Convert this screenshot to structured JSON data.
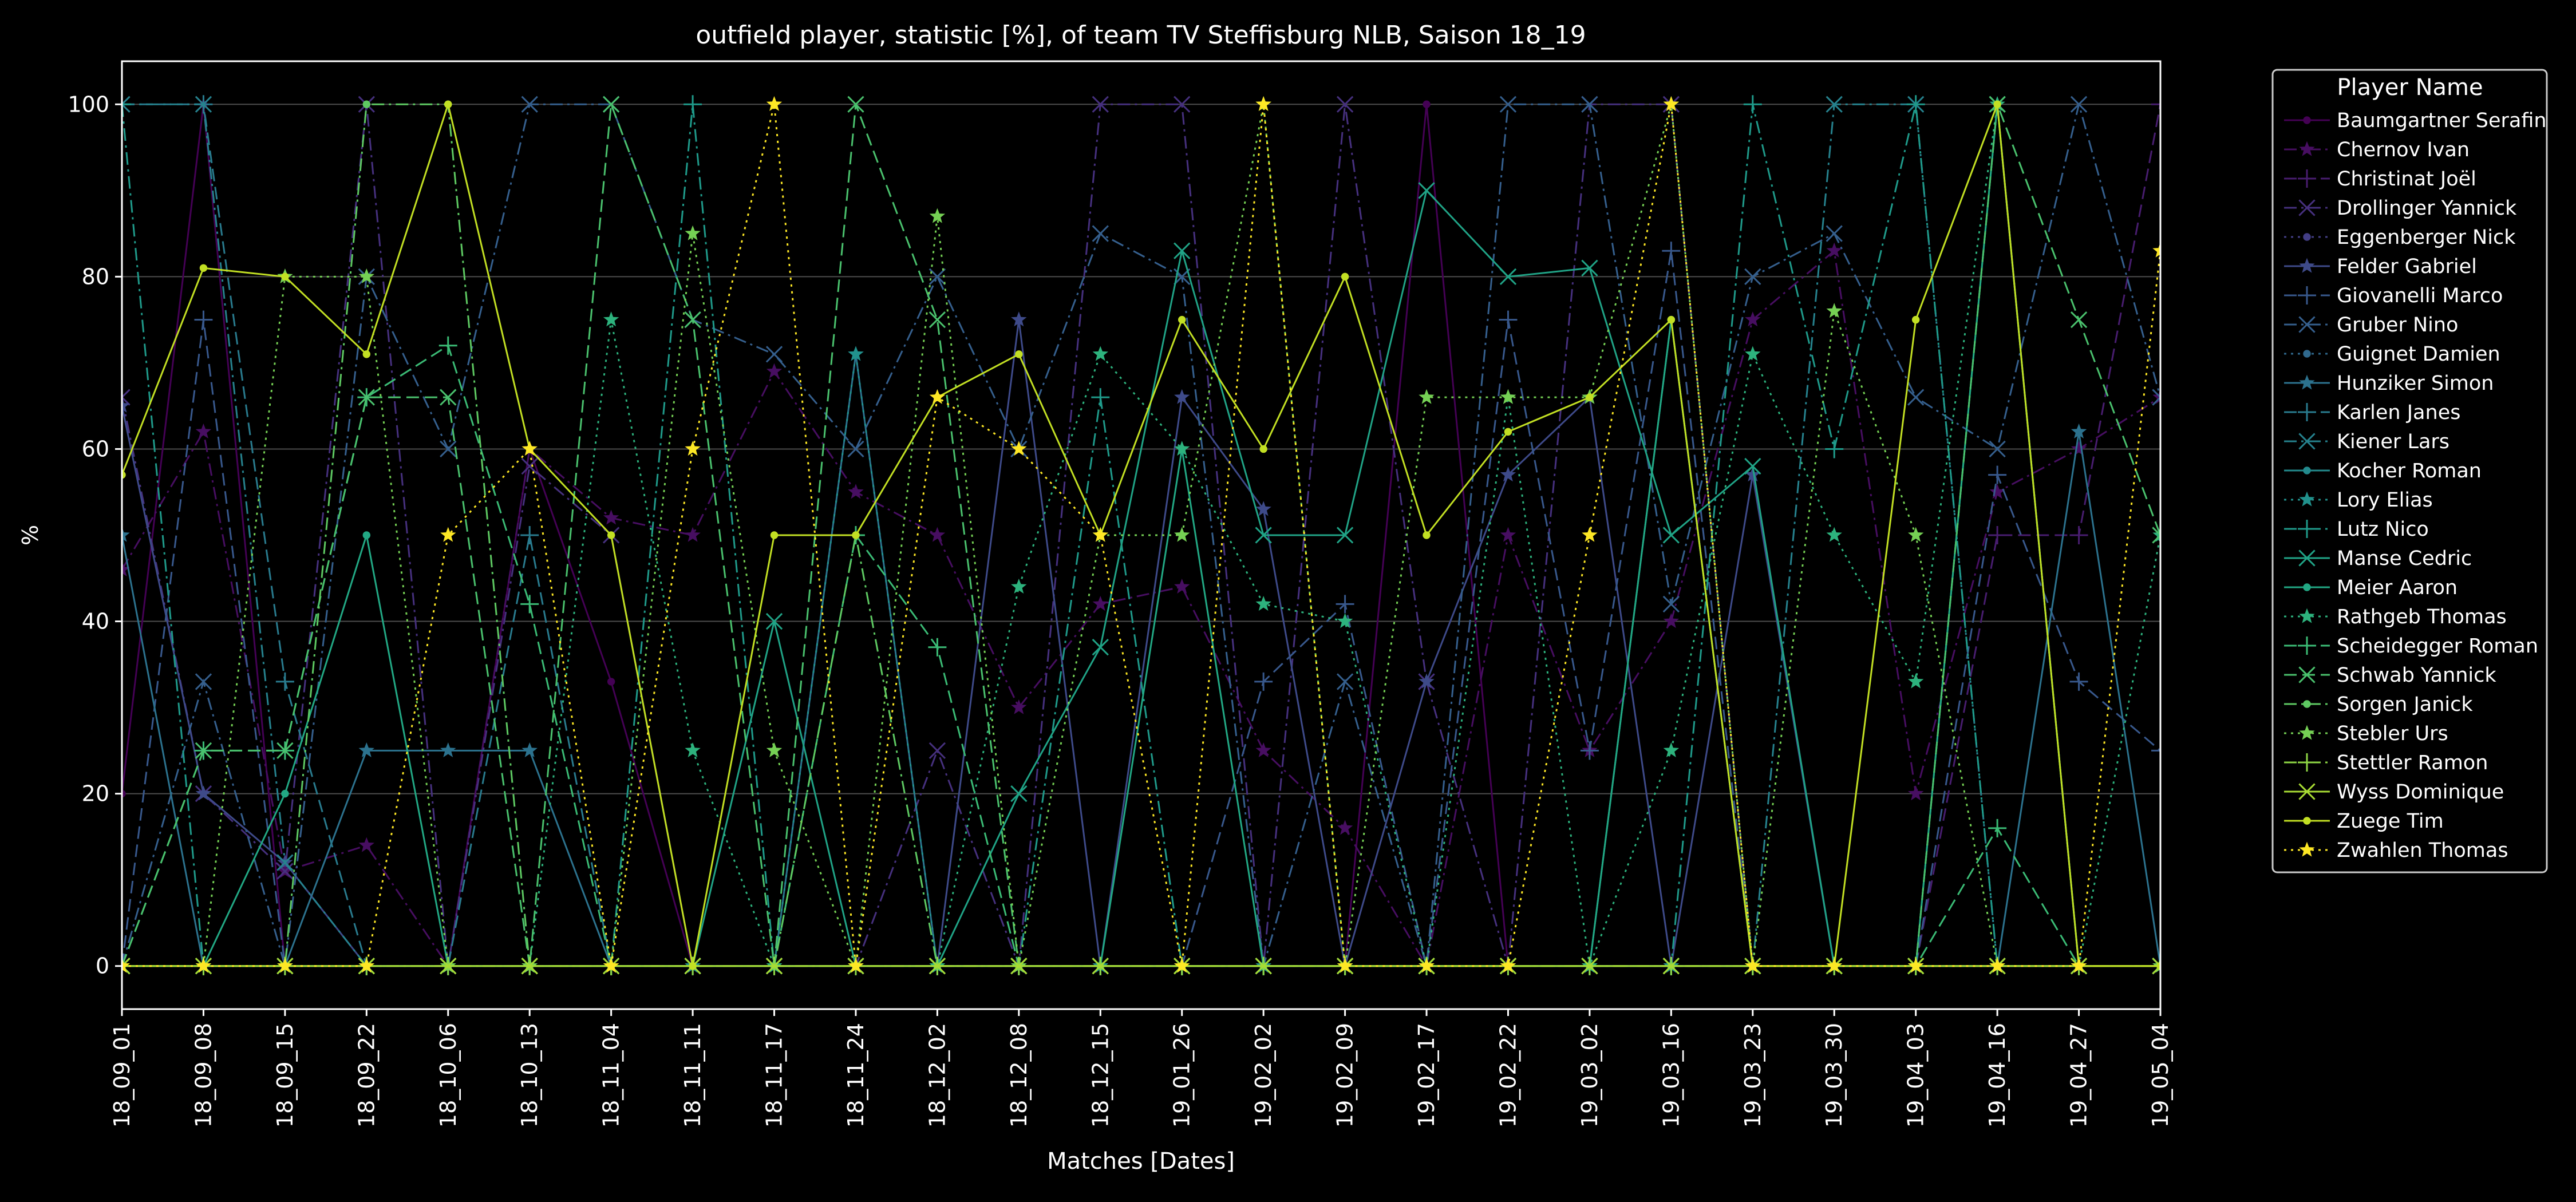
{
  "chart_data": {
    "type": "line",
    "title": "outfield player, statistic [%], of team TV Steffisburg NLB, Saison 18_19",
    "xlabel": "Matches [Dates]",
    "ylabel": "%",
    "ylim": [
      -5,
      105
    ],
    "yticks": [
      0,
      20,
      40,
      60,
      80,
      100
    ],
    "grid": "horizontal",
    "legend_title": "Player Name",
    "legend_position": "outside-right",
    "categories": [
      "18_09_01",
      "18_09_08",
      "18_09_15",
      "18_09_22",
      "18_10_06",
      "18_10_13",
      "18_11_04",
      "18_11_11",
      "18_11_17",
      "18_11_24",
      "18_12_02",
      "18_12_08",
      "18_12_15",
      "19_01_26",
      "19_02_02",
      "19_02_09",
      "19_02_17",
      "19_02_22",
      "19_03_02",
      "19_03_16",
      "19_03_23",
      "19_03_30",
      "19_04_03",
      "19_04_16",
      "19_04_27",
      "19_05_04"
    ],
    "series": [
      {
        "name": "Baumgartner Serafin",
        "color": "#440154",
        "dash": "solid",
        "marker": "circle",
        "values": [
          20,
          100,
          0,
          0,
          0,
          60,
          33,
          0,
          0,
          0,
          0,
          0,
          0,
          0,
          0,
          0,
          100,
          0,
          0,
          0,
          0,
          0,
          0,
          0,
          0,
          0
        ]
      },
      {
        "name": "Chernov Ivan",
        "color": "#470e61",
        "dash": "dashdot",
        "marker": "star",
        "values": [
          46,
          62,
          11,
          14,
          0,
          60,
          52,
          50,
          69,
          55,
          50,
          30,
          42,
          44,
          25,
          16,
          0,
          50,
          25,
          40,
          75,
          83,
          20,
          55,
          60,
          66
        ]
      },
      {
        "name": "Christinat Joël",
        "color": "#481d6f",
        "dash": "dashed",
        "marker": "plus",
        "values": [
          0,
          0,
          0,
          0,
          0,
          0,
          0,
          0,
          0,
          0,
          0,
          0,
          0,
          0,
          0,
          0,
          0,
          0,
          0,
          0,
          0,
          0,
          0,
          50,
          50,
          100
        ]
      },
      {
        "name": "Drollinger Yannick",
        "color": "#46307e",
        "dash": "dashdot",
        "marker": "x",
        "values": [
          66,
          20,
          11,
          100,
          0,
          58,
          50,
          0,
          0,
          0,
          25,
          0,
          100,
          100,
          0,
          100,
          33,
          0,
          100,
          100,
          0,
          0,
          0,
          0,
          0,
          0
        ]
      },
      {
        "name": "Eggenberger Nick",
        "color": "#433e85",
        "dash": "dotted",
        "marker": "circle",
        "values": [
          0,
          0,
          0,
          0,
          0,
          0,
          0,
          0,
          0,
          0,
          0,
          0,
          0,
          0,
          0,
          0,
          0,
          0,
          0,
          0,
          0,
          0,
          0,
          0,
          0,
          0
        ]
      },
      {
        "name": "Felder Gabriel",
        "color": "#3e4a89",
        "dash": "solid",
        "marker": "star",
        "values": [
          65,
          20,
          12,
          0,
          0,
          0,
          0,
          0,
          0,
          0,
          0,
          75,
          0,
          66,
          53,
          0,
          33,
          57,
          66,
          0,
          57,
          0,
          0,
          0,
          0,
          0
        ]
      },
      {
        "name": "Giovanelli Marco",
        "color": "#38588c",
        "dash": "dashed",
        "marker": "plus",
        "values": [
          0,
          75,
          0,
          0,
          0,
          0,
          0,
          0,
          0,
          0,
          0,
          0,
          0,
          0,
          33,
          42,
          0,
          75,
          25,
          83,
          0,
          0,
          0,
          57,
          33,
          25
        ]
      },
      {
        "name": "Gruber Nino",
        "color": "#355f8d",
        "dash": "dashdot",
        "marker": "x",
        "values": [
          0,
          33,
          0,
          80,
          60,
          100,
          100,
          75,
          71,
          60,
          80,
          60,
          85,
          80,
          0,
          33,
          0,
          100,
          100,
          42,
          80,
          85,
          66,
          60,
          100,
          66
        ]
      },
      {
        "name": "Guignet Damien",
        "color": "#30698e",
        "dash": "dotted",
        "marker": "circle",
        "values": [
          0,
          0,
          0,
          0,
          0,
          0,
          0,
          0,
          0,
          0,
          0,
          0,
          0,
          0,
          0,
          0,
          0,
          0,
          0,
          0,
          0,
          0,
          0,
          0,
          0,
          0
        ]
      },
      {
        "name": "Hunziker Simon",
        "color": "#2c728e",
        "dash": "solid",
        "marker": "star",
        "values": [
          50,
          0,
          0,
          25,
          25,
          25,
          0,
          0,
          0,
          71,
          0,
          0,
          0,
          0,
          0,
          0,
          0,
          0,
          0,
          0,
          0,
          0,
          0,
          0,
          62,
          0
        ]
      },
      {
        "name": "Karlen Janes",
        "color": "#297b8e",
        "dash": "dashed",
        "marker": "plus",
        "values": [
          100,
          100,
          33,
          0,
          0,
          50,
          0,
          0,
          0,
          0,
          0,
          0,
          0,
          0,
          0,
          0,
          0,
          0,
          0,
          0,
          0,
          0,
          0,
          0,
          0,
          0
        ]
      },
      {
        "name": "Kiener Lars",
        "color": "#26828e",
        "dash": "dashdot",
        "marker": "x",
        "values": [
          100,
          100,
          12,
          0,
          0,
          0,
          0,
          0,
          0,
          0,
          0,
          0,
          0,
          0,
          0,
          0,
          0,
          0,
          0,
          0,
          0,
          100,
          100,
          0,
          0,
          0
        ]
      },
      {
        "name": "Kocher Roman",
        "color": "#238a8d",
        "dash": "solid",
        "marker": "circle",
        "values": [
          0,
          0,
          0,
          0,
          0,
          0,
          0,
          0,
          0,
          0,
          0,
          0,
          0,
          0,
          0,
          0,
          0,
          0,
          0,
          75,
          0,
          0,
          0,
          0,
          0,
          0
        ]
      },
      {
        "name": "Lory Elias",
        "color": "#21918c",
        "dash": "dotted",
        "marker": "star",
        "values": [
          0,
          0,
          0,
          0,
          0,
          0,
          0,
          0,
          0,
          71,
          0,
          0,
          0,
          0,
          0,
          0,
          0,
          0,
          0,
          0,
          0,
          0,
          0,
          0,
          0,
          0
        ]
      },
      {
        "name": "Lutz Nico",
        "color": "#1f9a8a",
        "dash": "dashdot",
        "marker": "plus",
        "values": [
          100,
          0,
          0,
          0,
          0,
          0,
          0,
          100,
          0,
          0,
          0,
          0,
          66,
          0,
          0,
          0,
          0,
          0,
          0,
          0,
          100,
          60,
          100,
          0,
          0,
          0
        ]
      },
      {
        "name": "Manse Cedric",
        "color": "#20a386",
        "dash": "solid",
        "marker": "x",
        "values": [
          0,
          0,
          0,
          0,
          0,
          0,
          0,
          0,
          40,
          0,
          0,
          20,
          37,
          83,
          50,
          50,
          90,
          80,
          81,
          50,
          58,
          0,
          0,
          100,
          0,
          0
        ]
      },
      {
        "name": "Meier Aaron",
        "color": "#22a884",
        "dash": "solid",
        "marker": "circle",
        "values": [
          0,
          0,
          20,
          50,
          0,
          0,
          0,
          0,
          0,
          0,
          0,
          0,
          0,
          60,
          0,
          0,
          0,
          0,
          0,
          75,
          0,
          0,
          0,
          100,
          0,
          0
        ]
      },
      {
        "name": "Rathgeb Thomas",
        "color": "#2db27d",
        "dash": "dotted",
        "marker": "star",
        "values": [
          0,
          0,
          0,
          0,
          0,
          0,
          75,
          25,
          0,
          0,
          0,
          44,
          71,
          60,
          42,
          40,
          0,
          66,
          0,
          25,
          71,
          50,
          33,
          100,
          0,
          50
        ]
      },
      {
        "name": "Scheidegger Roman",
        "color": "#3bbb75",
        "dash": "dashed",
        "marker": "plus",
        "values": [
          0,
          25,
          25,
          66,
          72,
          42,
          0,
          0,
          0,
          50,
          37,
          0,
          0,
          0,
          0,
          0,
          0,
          0,
          0,
          0,
          0,
          0,
          0,
          16,
          0,
          0
        ]
      },
      {
        "name": "Schwab Yannick",
        "color": "#4ac16d",
        "dash": "dashed",
        "marker": "x",
        "values": [
          0,
          25,
          25,
          66,
          66,
          0,
          100,
          75,
          0,
          100,
          75,
          0,
          0,
          0,
          0,
          0,
          0,
          0,
          0,
          0,
          0,
          0,
          0,
          100,
          75,
          50
        ]
      },
      {
        "name": "Sorgen Janick",
        "color": "#5ec962",
        "dash": "dashdot",
        "marker": "circle",
        "values": [
          0,
          0,
          0,
          100,
          100,
          0,
          0,
          0,
          0,
          50,
          0,
          0,
          0,
          0,
          0,
          0,
          0,
          0,
          0,
          0,
          0,
          0,
          0,
          0,
          0,
          0
        ]
      },
      {
        "name": "Stebler Urs",
        "color": "#75d054",
        "dash": "dotted",
        "marker": "star",
        "values": [
          0,
          0,
          80,
          80,
          0,
          0,
          0,
          85,
          25,
          0,
          87,
          0,
          50,
          50,
          100,
          0,
          66,
          66,
          66,
          100,
          0,
          76,
          50,
          0,
          0,
          0
        ]
      },
      {
        "name": "Stettler Ramon",
        "color": "#8ed645",
        "dash": "dashdot",
        "marker": "plus",
        "values": [
          0,
          0,
          0,
          0,
          0,
          0,
          0,
          0,
          0,
          0,
          0,
          0,
          0,
          0,
          0,
          0,
          0,
          0,
          0,
          0,
          0,
          0,
          0,
          0,
          0,
          0
        ]
      },
      {
        "name": "Wyss Dominique",
        "color": "#a8db34",
        "dash": "solid",
        "marker": "x",
        "values": [
          0,
          0,
          0,
          0,
          0,
          0,
          0,
          0,
          0,
          0,
          0,
          0,
          0,
          0,
          0,
          0,
          0,
          0,
          0,
          0,
          0,
          0,
          0,
          0,
          0,
          0
        ]
      },
      {
        "name": "Zuege Tim",
        "color": "#c2df23",
        "dash": "solid",
        "marker": "circle",
        "values": [
          57,
          81,
          80,
          71,
          100,
          60,
          50,
          0,
          50,
          50,
          66,
          71,
          50,
          75,
          60,
          80,
          50,
          62,
          66,
          75,
          0,
          0,
          75,
          100,
          0,
          0
        ]
      },
      {
        "name": "Zwahlen Thomas",
        "color": "#fde725",
        "dash": "dotted",
        "marker": "star",
        "values": [
          0,
          0,
          0,
          0,
          50,
          60,
          0,
          60,
          100,
          0,
          66,
          60,
          50,
          0,
          100,
          0,
          0,
          0,
          50,
          100,
          0,
          0,
          0,
          0,
          0,
          83
        ]
      }
    ]
  }
}
